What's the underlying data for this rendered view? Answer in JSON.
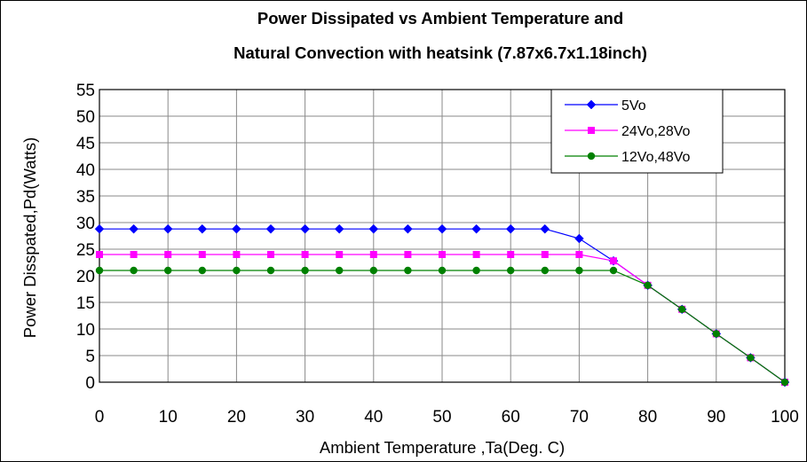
{
  "chart_data": {
    "type": "line",
    "title_lines": [
      "Power Dissipated vs Ambient Temperature and",
      "Natural Convection with heatsink (7.87x6.7x1.18inch)"
    ],
    "xlabel": "Ambient Temperature ,Ta(Deg. C)",
    "ylabel": "Power Disspated,Pd(Watts)",
    "xlim": [
      0,
      100
    ],
    "ylim": [
      0,
      55
    ],
    "xticks": [
      "0",
      "10",
      "20",
      "30",
      "40",
      "50",
      "60",
      "70",
      "80",
      "90",
      "100"
    ],
    "yticks": [
      "0",
      "5",
      "10",
      "15",
      "20",
      "25",
      "30",
      "35",
      "40",
      "45",
      "50",
      "55"
    ],
    "grid": true,
    "legend_position": "top-right",
    "x": [
      0,
      5,
      10,
      15,
      20,
      25,
      30,
      35,
      40,
      45,
      50,
      55,
      60,
      65,
      70,
      75,
      80,
      85,
      90,
      95,
      100
    ],
    "series": [
      {
        "name": "5Vo",
        "color": "#0000ff",
        "marker": "diamond",
        "values": [
          28.8,
          28.8,
          28.8,
          28.8,
          28.8,
          28.8,
          28.8,
          28.8,
          28.8,
          28.8,
          28.8,
          28.8,
          28.8,
          28.8,
          27.0,
          22.8,
          18.2,
          13.7,
          9.1,
          4.6,
          0
        ]
      },
      {
        "name": "24Vo,28Vo",
        "color": "#ff00ff",
        "marker": "square",
        "values": [
          24.0,
          24.0,
          24.0,
          24.0,
          24.0,
          24.0,
          24.0,
          24.0,
          24.0,
          24.0,
          24.0,
          24.0,
          24.0,
          24.0,
          24.0,
          22.8,
          18.2,
          13.7,
          9.1,
          4.6,
          0
        ]
      },
      {
        "name": "12Vo,48Vo",
        "color": "#008000",
        "marker": "circle",
        "values": [
          21.0,
          21.0,
          21.0,
          21.0,
          21.0,
          21.0,
          21.0,
          21.0,
          21.0,
          21.0,
          21.0,
          21.0,
          21.0,
          21.0,
          21.0,
          21.0,
          18.2,
          13.7,
          9.1,
          4.6,
          0
        ]
      }
    ]
  }
}
